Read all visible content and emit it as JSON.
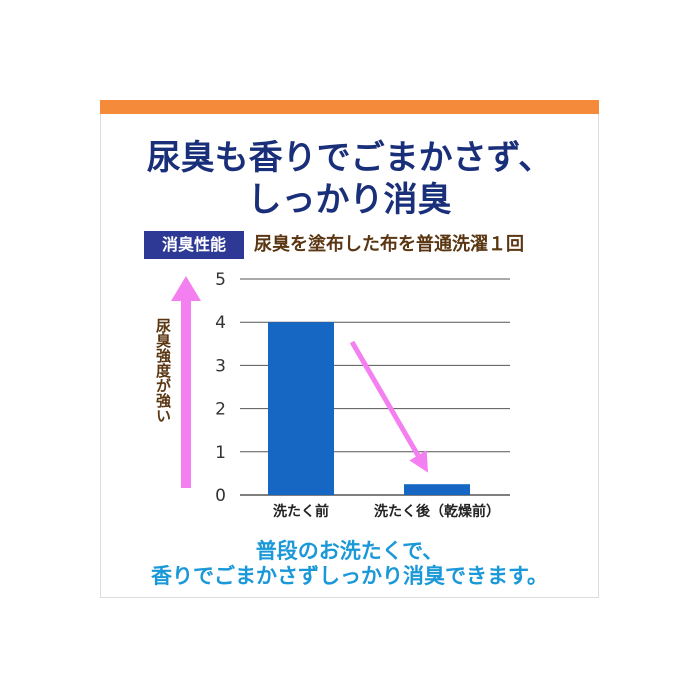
{
  "colors": {
    "top_bar": "#f58a3a",
    "headline": "#1a2f7a",
    "badge_bg": "#2d3994",
    "subtitle": "#5a3612",
    "bar": "#1667c4",
    "arrow": "#f47ff0",
    "footer": "#1a98d8",
    "grid": "#555555"
  },
  "headline": {
    "line1": "尿臭も香りでごまかさず、",
    "line2": "しっかり消臭"
  },
  "badge": "消臭性能",
  "subtitle": "尿臭を塗布した布を普通洗濯１回",
  "y_axis_label": "尿臭強度が強い",
  "chart_data": {
    "type": "bar",
    "categories": [
      "洗たく前",
      "洗たく後（乾燥前）"
    ],
    "values": [
      4.0,
      0.25
    ],
    "ylim": [
      0,
      5
    ],
    "yticks": [
      "0",
      "1",
      "2",
      "3",
      "4",
      "5"
    ],
    "ylabel": "尿臭強度が強い",
    "grid": true,
    "annotations": [
      "arrow from before-wash bar to after-wash bar",
      "upward arrow beside y-axis"
    ]
  },
  "footer": {
    "line1": "普段のお洗たくで、",
    "line2": "香りでごまかさずしっかり消臭できます。"
  }
}
